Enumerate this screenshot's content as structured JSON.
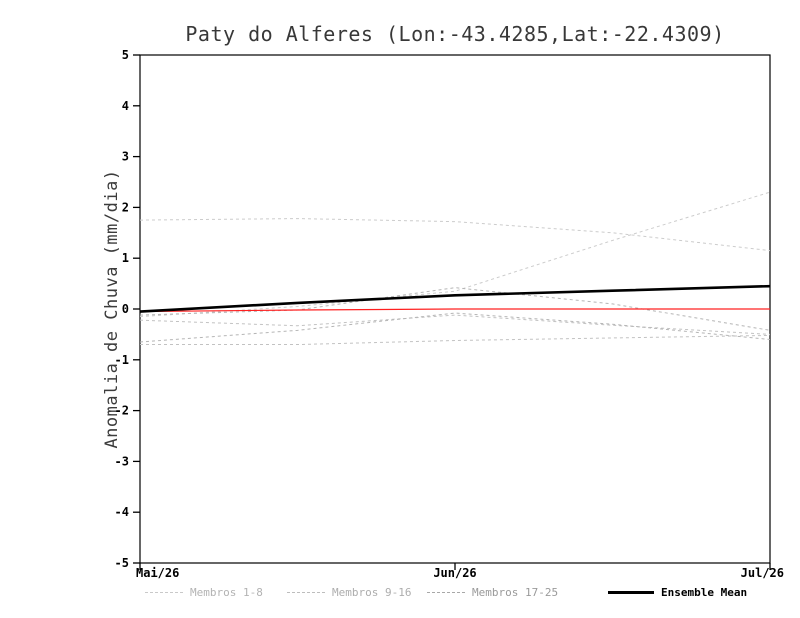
{
  "chart_data": {
    "type": "line",
    "title": "Paty do Alferes (Lon:-43.4285,Lat:-22.4309)",
    "ylabel": "Anomalia de Chuva (mm/dia)",
    "ylim": [
      -5,
      5
    ],
    "yticks": [
      -5,
      -4,
      -3,
      -2,
      -1,
      0,
      1,
      2,
      3,
      4,
      5
    ],
    "x": [
      0,
      0.5,
      1,
      1.5,
      2
    ],
    "x_tick_values": [
      0,
      1,
      2
    ],
    "x_tick_labels": [
      "Mai/26",
      "Jun/26",
      "Jul/26"
    ],
    "grid": false,
    "series": [
      {
        "name": "membro-a",
        "group": "Membros 1-8",
        "color": "#cccccc",
        "width": 1,
        "dash": "3 3",
        "values": [
          1.75,
          1.78,
          1.72,
          1.5,
          1.15
        ]
      },
      {
        "name": "membro-b",
        "group": "Membros 1-8",
        "color": "#cccccc",
        "width": 1,
        "dash": "3 3",
        "values": [
          -0.15,
          0.05,
          0.35,
          1.35,
          2.3
        ]
      },
      {
        "name": "membro-c",
        "group": "Membros 9-16",
        "color": "#c2c2c2",
        "width": 1,
        "dash": "3 3",
        "values": [
          -0.7,
          -0.7,
          -0.62,
          -0.57,
          -0.52
        ]
      },
      {
        "name": "membro-d",
        "group": "Membros 9-16",
        "color": "#c2c2c2",
        "width": 1,
        "dash": "3 3",
        "values": [
          -0.22,
          -0.33,
          -0.12,
          -0.32,
          -0.5
        ]
      },
      {
        "name": "membro-e",
        "group": "Membros 17-25",
        "color": "#b5b5b5",
        "width": 1,
        "dash": "3 3",
        "values": [
          -0.12,
          -0.02,
          0.42,
          0.1,
          -0.42
        ]
      },
      {
        "name": "membro-f",
        "group": "Membros 17-25",
        "color": "#b5b5b5",
        "width": 1,
        "dash": "3 3",
        "values": [
          -0.65,
          -0.42,
          -0.08,
          -0.3,
          -0.6
        ]
      },
      {
        "name": "zero-reference",
        "group": "",
        "color": "#ff2020",
        "width": 1.2,
        "dash": null,
        "values": [
          -0.05,
          -0.02,
          0.0,
          0.0,
          0.0
        ]
      },
      {
        "name": "ensemble-mean",
        "group": "Ensemble Mean",
        "color": "#000000",
        "width": 2.6,
        "dash": null,
        "values": [
          -0.05,
          0.12,
          0.27,
          0.36,
          0.45
        ]
      }
    ],
    "legend": [
      {
        "label": "Membros 1-8",
        "color": "#c9c9c9",
        "style": "dashed",
        "text_color": "#b3b3b3",
        "emphasis": false
      },
      {
        "label": "Membros 9-16",
        "color": "#bdbdbd",
        "style": "dashed",
        "text_color": "#adadad",
        "emphasis": false
      },
      {
        "label": "Membros 17-25",
        "color": "#a8a8a8",
        "style": "dashed",
        "text_color": "#9a9a9a",
        "emphasis": false
      },
      {
        "label": "Ensemble Mean",
        "color": "#000000",
        "style": "solid",
        "text_color": "#000000",
        "emphasis": true
      }
    ],
    "legend_position": "bottom"
  }
}
